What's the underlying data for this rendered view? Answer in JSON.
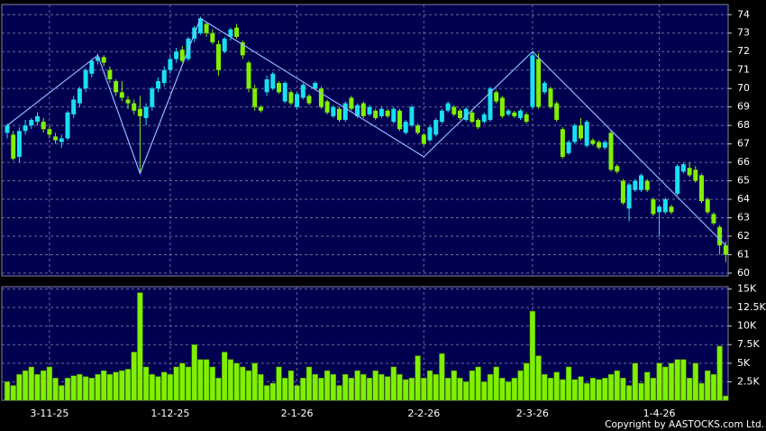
{
  "chart_data": [
    {
      "type": "candlestick",
      "categories": [
        null,
        null,
        null,
        null,
        null,
        null,
        null,
        "3-11-25",
        null,
        null,
        null,
        null,
        null,
        null,
        null,
        null,
        null,
        null,
        null,
        null,
        null,
        null,
        null,
        null,
        null,
        null,
        null,
        "1-12-25",
        null,
        null,
        null,
        null,
        null,
        null,
        null,
        null,
        null,
        null,
        null,
        null,
        null,
        null,
        null,
        null,
        null,
        null,
        null,
        null,
        "2-1-26",
        null,
        null,
        null,
        null,
        null,
        null,
        null,
        null,
        null,
        null,
        null,
        null,
        null,
        null,
        null,
        null,
        null,
        null,
        null,
        null,
        "2-2-26",
        null,
        null,
        null,
        null,
        null,
        null,
        null,
        null,
        null,
        null,
        null,
        null,
        null,
        null,
        null,
        null,
        null,
        "2-3-26",
        null,
        null,
        null,
        null,
        null,
        null,
        null,
        null,
        null,
        null,
        null,
        null,
        null,
        null,
        null,
        null,
        null,
        null,
        null,
        null,
        "1-4-26",
        null,
        null,
        null,
        null,
        null,
        null,
        null,
        null,
        null,
        null,
        null
      ],
      "candles": [
        [
          67.6,
          68.1,
          67.3,
          68.0
        ],
        [
          67.5,
          67.7,
          66.1,
          66.2
        ],
        [
          66.3,
          67.9,
          66.0,
          67.7
        ],
        [
          67.7,
          68.3,
          67.5,
          68.0
        ],
        [
          68.0,
          68.4,
          67.8,
          68.3
        ],
        [
          68.2,
          68.7,
          68.0,
          68.5
        ],
        [
          68.2,
          68.4,
          67.6,
          67.8
        ],
        [
          67.8,
          68.0,
          67.3,
          67.5
        ],
        [
          67.4,
          67.6,
          67.0,
          67.2
        ],
        [
          67.1,
          67.5,
          66.8,
          67.3
        ],
        [
          67.3,
          68.8,
          67.2,
          68.7
        ],
        [
          68.6,
          69.6,
          68.4,
          69.4
        ],
        [
          69.2,
          70.1,
          69.0,
          70.0
        ],
        [
          70.0,
          71.1,
          69.8,
          71.0
        ],
        [
          70.8,
          71.6,
          70.6,
          71.5
        ],
        [
          71.5,
          71.9,
          71.3,
          71.7
        ],
        [
          71.7,
          71.8,
          71.2,
          71.4
        ],
        [
          71.0,
          71.2,
          70.3,
          70.5
        ],
        [
          70.4,
          70.5,
          69.6,
          69.8
        ],
        [
          69.8,
          70.4,
          69.3,
          69.5
        ],
        [
          69.4,
          69.6,
          68.9,
          69.2
        ],
        [
          69.2,
          69.4,
          68.6,
          68.8
        ],
        [
          68.9,
          69.6,
          65.4,
          68.5
        ],
        [
          68.4,
          69.2,
          68.0,
          69.0
        ],
        [
          69.0,
          70.1,
          68.8,
          70.0
        ],
        [
          70.0,
          70.6,
          69.8,
          70.4
        ],
        [
          70.3,
          71.2,
          70.1,
          71.0
        ],
        [
          71.0,
          71.8,
          70.8,
          71.6
        ],
        [
          71.6,
          72.2,
          71.4,
          72.0
        ],
        [
          72.1,
          72.3,
          71.4,
          71.5
        ],
        [
          71.6,
          72.8,
          71.5,
          72.7
        ],
        [
          72.7,
          73.4,
          72.5,
          73.3
        ],
        [
          73.0,
          73.9,
          72.9,
          73.8
        ],
        [
          73.5,
          73.6,
          72.8,
          73.0
        ],
        [
          73.0,
          73.2,
          72.4,
          72.5
        ],
        [
          72.4,
          72.6,
          70.7,
          71.0
        ],
        [
          72.0,
          72.8,
          71.9,
          72.7
        ],
        [
          72.8,
          73.3,
          72.6,
          73.2
        ],
        [
          73.3,
          73.5,
          72.7,
          72.8
        ],
        [
          72.5,
          72.6,
          71.6,
          71.8
        ],
        [
          71.4,
          71.5,
          69.8,
          70.0
        ],
        [
          70.0,
          70.2,
          68.8,
          69.0
        ],
        [
          69.0,
          69.1,
          68.7,
          68.8
        ],
        [
          69.8,
          70.7,
          69.6,
          70.5
        ],
        [
          70.0,
          70.9,
          69.9,
          70.8
        ],
        [
          70.3,
          70.4,
          69.7,
          69.8
        ],
        [
          69.3,
          70.4,
          69.2,
          70.3
        ],
        [
          69.8,
          69.9,
          69.1,
          69.2
        ],
        [
          69.0,
          69.8,
          68.9,
          69.7
        ],
        [
          69.5,
          70.3,
          69.4,
          70.2
        ],
        [
          69.6,
          69.7,
          69.1,
          69.2
        ],
        [
          70.0,
          70.4,
          69.9,
          70.3
        ],
        [
          70.0,
          70.1,
          68.9,
          69.0
        ],
        [
          69.3,
          69.4,
          68.6,
          68.7
        ],
        [
          68.5,
          69.1,
          68.4,
          69.0
        ],
        [
          68.9,
          69.0,
          68.2,
          68.3
        ],
        [
          68.3,
          69.3,
          68.2,
          69.2
        ],
        [
          69.5,
          69.6,
          68.8,
          68.9
        ],
        [
          68.5,
          69.2,
          68.4,
          69.1
        ],
        [
          69.2,
          69.3,
          68.4,
          68.5
        ],
        [
          68.6,
          69.1,
          68.5,
          69.0
        ],
        [
          68.8,
          68.9,
          68.3,
          68.4
        ],
        [
          68.5,
          69.0,
          68.4,
          68.9
        ],
        [
          68.8,
          68.9,
          68.4,
          68.5
        ],
        [
          68.2,
          69.0,
          68.1,
          68.9
        ],
        [
          68.8,
          68.9,
          67.7,
          67.8
        ],
        [
          67.6,
          68.3,
          67.5,
          68.2
        ],
        [
          68.0,
          69.1,
          67.9,
          69.0
        ],
        [
          68.0,
          68.1,
          67.5,
          67.6
        ],
        [
          67.5,
          67.6,
          66.9,
          67.0
        ],
        [
          67.2,
          68.0,
          67.1,
          67.9
        ],
        [
          67.5,
          68.4,
          67.4,
          68.3
        ],
        [
          68.2,
          68.9,
          68.1,
          68.8
        ],
        [
          68.8,
          69.3,
          68.7,
          69.2
        ],
        [
          69.0,
          69.1,
          68.5,
          68.6
        ],
        [
          68.8,
          68.9,
          68.3,
          68.4
        ],
        [
          68.3,
          69.0,
          68.2,
          68.9
        ],
        [
          68.7,
          68.8,
          68.1,
          68.2
        ],
        [
          68.3,
          68.4,
          67.8,
          67.9
        ],
        [
          68.2,
          68.7,
          68.1,
          68.6
        ],
        [
          68.3,
          70.1,
          68.2,
          70.0
        ],
        [
          69.8,
          69.9,
          69.2,
          69.3
        ],
        [
          69.5,
          69.6,
          68.4,
          68.5
        ],
        [
          68.6,
          68.9,
          68.5,
          68.8
        ],
        [
          68.7,
          68.8,
          68.4,
          68.5
        ],
        [
          68.4,
          68.9,
          68.3,
          68.8
        ],
        [
          68.6,
          68.7,
          68.1,
          68.2
        ],
        [
          69.0,
          72.0,
          68.9,
          71.8
        ],
        [
          71.6,
          71.9,
          68.9,
          69.0
        ],
        [
          69.8,
          70.4,
          69.7,
          70.3
        ],
        [
          70.0,
          70.1,
          68.9,
          69.0
        ],
        [
          69.2,
          69.3,
          68.2,
          68.3
        ],
        [
          67.8,
          67.9,
          66.2,
          66.3
        ],
        [
          66.5,
          67.2,
          66.4,
          67.1
        ],
        [
          67.1,
          68.1,
          67.0,
          68.0
        ],
        [
          68.0,
          68.4,
          67.2,
          67.3
        ],
        [
          66.9,
          68.3,
          66.8,
          68.2
        ],
        [
          67.2,
          67.3,
          66.9,
          67.0
        ],
        [
          67.1,
          67.2,
          66.7,
          66.8
        ],
        [
          66.8,
          67.2,
          66.7,
          67.1
        ],
        [
          67.6,
          67.7,
          65.5,
          65.6
        ],
        [
          65.8,
          65.9,
          65.4,
          65.5
        ],
        [
          65.0,
          65.1,
          63.7,
          63.8
        ],
        [
          63.5,
          64.9,
          62.8,
          64.8
        ],
        [
          64.5,
          65.1,
          64.4,
          65.0
        ],
        [
          64.5,
          65.4,
          64.4,
          65.3
        ],
        [
          65.0,
          65.1,
          64.4,
          64.5
        ],
        [
          64.0,
          64.1,
          63.1,
          63.2
        ],
        [
          63.3,
          63.7,
          62.0,
          63.6
        ],
        [
          63.3,
          64.1,
          63.2,
          64.0
        ],
        [
          63.6,
          63.7,
          63.2,
          63.3
        ],
        [
          64.3,
          65.9,
          64.2,
          65.8
        ],
        [
          65.5,
          66.0,
          65.4,
          65.9
        ],
        [
          65.7,
          66.0,
          65.2,
          65.3
        ],
        [
          65.6,
          65.8,
          64.9,
          65.0
        ],
        [
          65.3,
          65.4,
          63.8,
          63.9
        ],
        [
          64.0,
          64.1,
          63.2,
          63.3
        ],
        [
          63.2,
          63.3,
          62.6,
          62.7
        ],
        [
          62.5,
          62.6,
          61.0,
          61.5
        ],
        [
          61.5,
          61.7,
          60.6,
          61.0
        ]
      ],
      "up_color": "#19e0f0",
      "down_color": "#80f000",
      "ylim": [
        59.85,
        74.55
      ],
      "yticks": [
        60,
        61,
        62,
        63,
        64,
        65,
        66,
        67,
        68,
        69,
        70,
        71,
        72,
        73,
        74
      ],
      "grid": true,
      "zigzag": {
        "x": [
          0,
          15,
          22,
          32,
          69,
          87,
          119
        ],
        "values": [
          68.0,
          71.8,
          65.4,
          73.8,
          66.3,
          72.0,
          61.5
        ],
        "color": "#8fb8ff"
      }
    },
    {
      "type": "bar",
      "color": "#80f000",
      "values": [
        2500,
        2000,
        3500,
        4000,
        4500,
        3500,
        4000,
        4500,
        3000,
        2000,
        3000,
        3300,
        3500,
        3200,
        3000,
        3500,
        4000,
        3500,
        3800,
        4000,
        4200,
        6500,
        14500,
        4500,
        3500,
        3200,
        3800,
        3500,
        4500,
        5000,
        4500,
        7500,
        5500,
        5500,
        4500,
        3000,
        6500,
        5500,
        5000,
        4500,
        4000,
        5000,
        3500,
        2000,
        2300,
        4500,
        3000,
        4000,
        2000,
        3000,
        4500,
        3500,
        3000,
        4000,
        3500,
        2000,
        3500,
        3000,
        4000,
        3500,
        3000,
        4000,
        3500,
        3200,
        4500,
        3500,
        2800,
        3000,
        6000,
        3000,
        4000,
        3500,
        6300,
        3000,
        4000,
        3000,
        2500,
        4000,
        4500,
        2500,
        3500,
        4500,
        3000,
        2500,
        3000,
        4000,
        5000,
        12000,
        6000,
        3500,
        3000,
        3800,
        2800,
        4500,
        2800,
        3200,
        2300,
        3000,
        2800,
        3000,
        3500,
        4000,
        3000,
        2000,
        5000,
        2300,
        3800,
        3000,
        5000,
        4500,
        5000,
        5500,
        5500,
        3000,
        5000,
        2300,
        4000,
        3500,
        7300,
        600
      ],
      "ylim": [
        0,
        15300
      ],
      "yticks": [
        {
          "value": 2500,
          "label": "2.5K"
        },
        {
          "value": 5000,
          "label": "5K"
        },
        {
          "value": 7500,
          "label": "7.5K"
        },
        {
          "value": 10000,
          "label": "10K"
        },
        {
          "value": 12500,
          "label": "12.5K"
        },
        {
          "value": 15000,
          "label": "15K"
        }
      ],
      "grid": true
    }
  ],
  "copyright": "Copyright by AASTOCKS.com Ltd."
}
